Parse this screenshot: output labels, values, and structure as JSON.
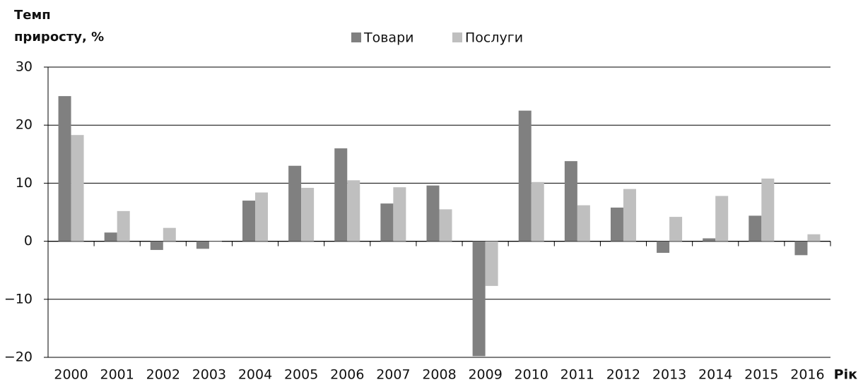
{
  "chart_data": {
    "type": "bar",
    "y_label": "Темп приросту, %",
    "x_label": "Рік",
    "categories": [
      "2000",
      "2001",
      "2002",
      "2003",
      "2004",
      "2005",
      "2006",
      "2007",
      "2008",
      "2009",
      "2010",
      "2011",
      "2012",
      "2013",
      "2014",
      "2015",
      "2016"
    ],
    "series": [
      {
        "name": "Товари",
        "color": "#808080",
        "values": [
          25,
          1.5,
          -1.5,
          -1.3,
          7,
          13,
          16,
          6.5,
          9.6,
          -19.8,
          22.5,
          13.8,
          5.8,
          -2,
          0.5,
          4.4,
          -2.4
        ]
      },
      {
        "name": "Послуги",
        "color": "#bfbfbf",
        "values": [
          18.3,
          5.2,
          2.3,
          -0.1,
          8.4,
          9.2,
          10.5,
          9.3,
          5.5,
          -7.7,
          10.2,
          6.2,
          9.0,
          4.2,
          7.8,
          10.8,
          1.2
        ]
      }
    ],
    "ylim": [
      -20,
      30
    ],
    "yticks": [
      {
        "value": -20,
        "label": "−20"
      },
      {
        "value": -10,
        "label": "−10"
      },
      0,
      10,
      20,
      30
    ],
    "grid": true,
    "legend": "top"
  }
}
